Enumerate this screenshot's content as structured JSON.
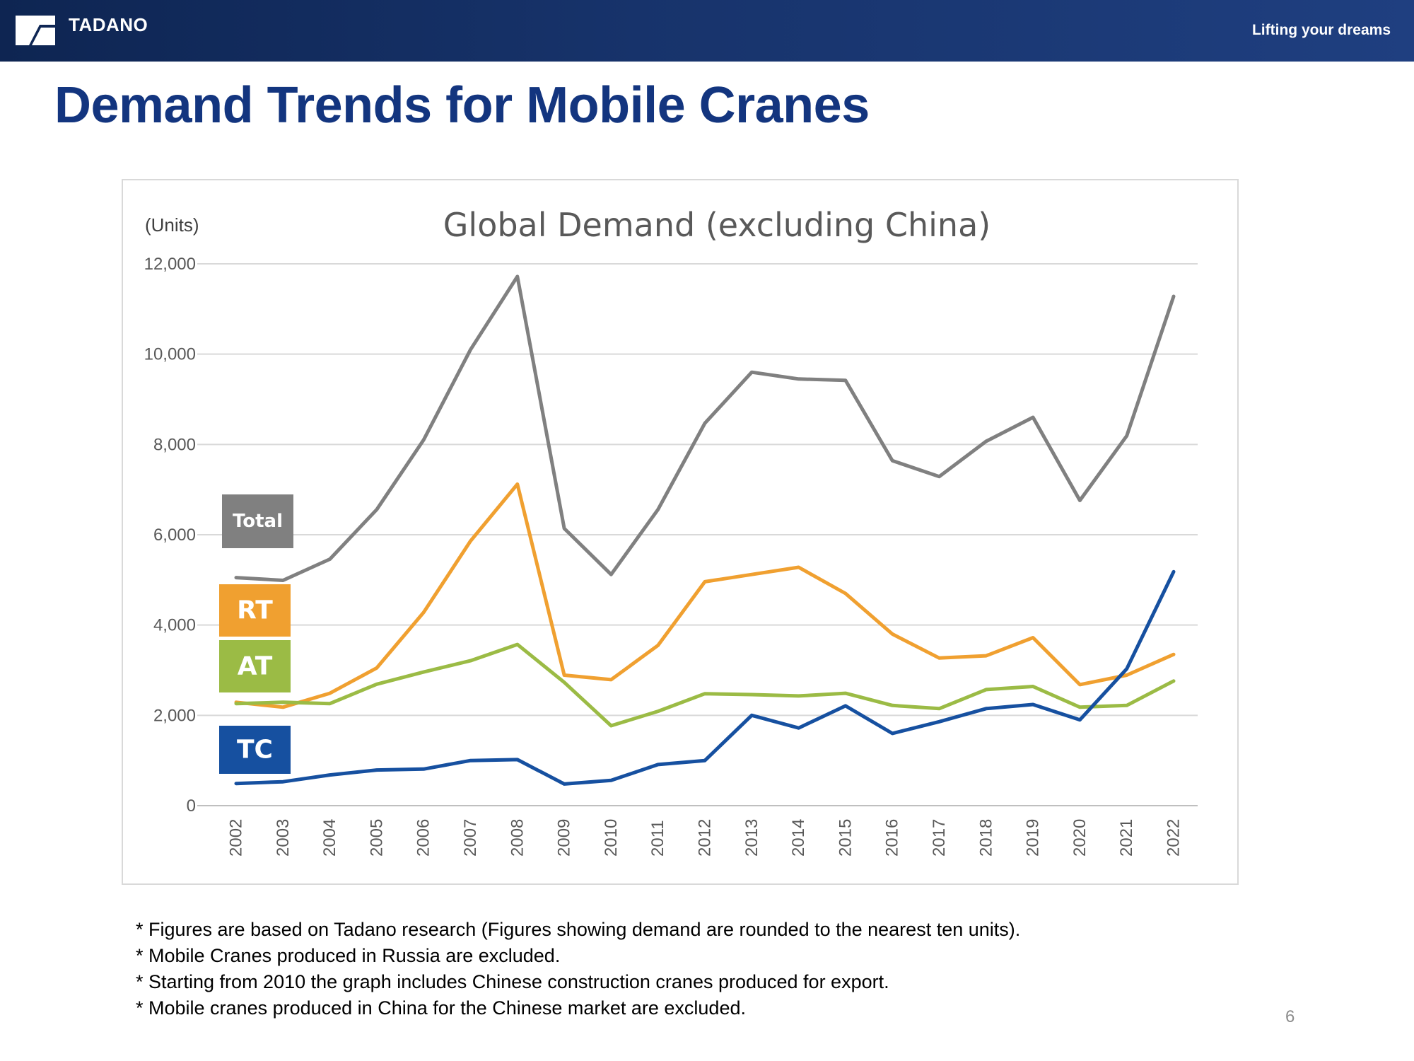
{
  "header": {
    "brand": "TADANO",
    "tagline": "Lifting your dreams",
    "colors": {
      "background": "#13285a",
      "text": "#ffffff"
    }
  },
  "page": {
    "title": "Demand Trends for Mobile Cranes",
    "title_color": "#13357f",
    "page_number": "6"
  },
  "chart_data": {
    "type": "line",
    "title": "Global Demand (excluding China)",
    "ylabel": "(Units)",
    "xlabel": "",
    "ylim": [
      0,
      12000
    ],
    "yticks": [
      0,
      2000,
      4000,
      6000,
      8000,
      10000,
      12000
    ],
    "ytick_labels": [
      "0",
      "2,000",
      "4,000",
      "6,000",
      "8,000",
      "10,000",
      "12,000"
    ],
    "grid": true,
    "legend_placement": "left, inline series labels",
    "categories": [
      "2002",
      "2003",
      "2004",
      "2005",
      "2006",
      "2007",
      "2008",
      "2009",
      "2010",
      "2011",
      "2012",
      "2013",
      "2014",
      "2015",
      "2016",
      "2017",
      "2018",
      "2019",
      "2020",
      "2021",
      "2022"
    ],
    "series": [
      {
        "name": "Total",
        "color": "#808080",
        "values": [
          5050,
          4990,
          5460,
          6560,
          8100,
          10100,
          11720,
          6140,
          5120,
          6560,
          8470,
          9600,
          9450,
          9420,
          7640,
          7290,
          8070,
          8600,
          6760,
          8190,
          11280
        ]
      },
      {
        "name": "RT",
        "color": "#f0a030",
        "values": [
          2290,
          2180,
          2490,
          3050,
          4280,
          5860,
          7120,
          2890,
          2790,
          3550,
          4960,
          5120,
          5280,
          4700,
          3800,
          3270,
          3320,
          3720,
          2680,
          2890,
          3350
        ]
      },
      {
        "name": "AT",
        "color": "#9bbb45",
        "values": [
          2260,
          2290,
          2260,
          2690,
          2960,
          3210,
          3570,
          2730,
          1770,
          2090,
          2480,
          2460,
          2430,
          2490,
          2220,
          2150,
          2570,
          2640,
          2180,
          2220,
          2760
        ]
      },
      {
        "name": "TC",
        "color": "#1650a0",
        "values": [
          490,
          530,
          680,
          790,
          810,
          1000,
          1020,
          480,
          560,
          910,
          1000,
          2000,
          1720,
          2210,
          1600,
          1860,
          2150,
          2240,
          1900,
          3030,
          5180
        ]
      }
    ]
  },
  "notes": [
    "* Figures are based on Tadano research (Figures showing demand are rounded to the nearest ten units).",
    "* Mobile Cranes produced in Russia are excluded.",
    "* Starting from 2010 the graph includes Chinese construction cranes produced for export.",
    "* Mobile cranes produced in China for the Chinese market are excluded."
  ]
}
